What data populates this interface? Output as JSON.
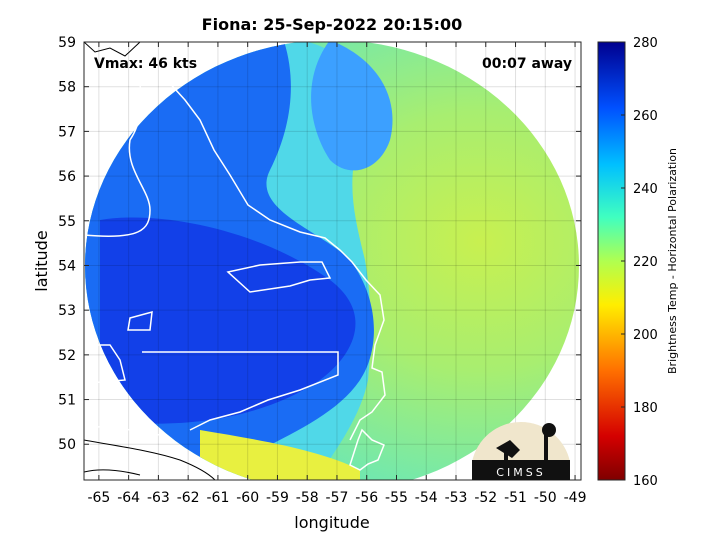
{
  "title": "Fiona: 25-Sep-2022 20:15:00",
  "vmax_text": "Vmax: 46 kts",
  "time_away_text": "00:07 away",
  "logo_text": "CIMSS",
  "chart_data": {
    "type": "heatmap",
    "title": "Fiona: 25-Sep-2022 20:15:00",
    "xlabel": "longitude",
    "ylabel": "latitude",
    "xlim": [
      -65.5,
      -48.8
    ],
    "ylim": [
      49.2,
      59
    ],
    "x_ticks": [
      -65,
      -64,
      -63,
      -62,
      -61,
      -60,
      -59,
      -58,
      -57,
      -56,
      -55,
      -54,
      -53,
      -52,
      -51,
      -50,
      -49
    ],
    "y_ticks": [
      50,
      51,
      52,
      53,
      54,
      55,
      56,
      57,
      58,
      59
    ],
    "grid": true,
    "colorbar": {
      "label": "Brightness Temp - Horizontal Polarization",
      "range": [
        160,
        280
      ],
      "ticks": [
        160,
        180,
        200,
        220,
        240,
        260,
        280
      ],
      "colormap": "jet"
    },
    "swath": {
      "center_lon": -57,
      "center_lat": 54.1,
      "radius_deg_lon": 8.1,
      "radius_deg_lat": 4.95
    }
  }
}
